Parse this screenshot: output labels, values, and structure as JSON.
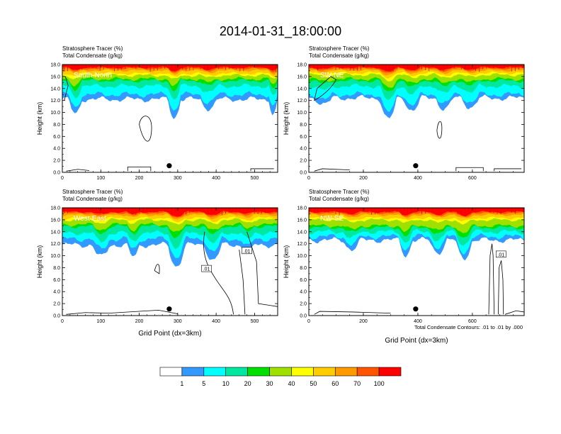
{
  "figure": {
    "title": "2014-01-31_18:00:00",
    "footnote": "Total Condensate Contours: .01 to .01 by .000"
  },
  "palette": {
    "blue": "#3399ff",
    "cyan": "#00ffff",
    "teal": "#00e8a0",
    "green": "#00e000",
    "lime": "#a0e000",
    "yellow": "#ffff00",
    "gold": "#ffcc00",
    "orange": "#ff9900",
    "redorange": "#ff5500",
    "red": "#ff0000"
  },
  "legend": {
    "colors": [
      "#ffffff",
      "#3399ff",
      "#00ffff",
      "#00e8a0",
      "#00e000",
      "#a0e000",
      "#ffff00",
      "#ffcc00",
      "#ff9900",
      "#ff5500",
      "#ff0000"
    ],
    "labels": [
      "1",
      "5",
      "10",
      "20",
      "30",
      "40",
      "50",
      "60",
      "70",
      "100"
    ]
  },
  "chart_data": [
    {
      "type": "heatmap",
      "title_line1": "Stratosphere Tracer   (%)",
      "title_line2": "Total Condensate   (g/kg)",
      "panel_label": "South-North",
      "ylabel": "Height (km)",
      "xlabel": "",
      "xlim": [
        0,
        560
      ],
      "xticks": [
        0,
        100,
        200,
        300,
        400,
        500
      ],
      "ylim": [
        0,
        18
      ],
      "yticks": [
        "0.0",
        "2.0",
        "4.0",
        "6.0",
        "8.0",
        "10.0",
        "12.0",
        "14.0",
        "16.0",
        "18.0"
      ],
      "contour_labels": [],
      "marker": {
        "x": 278,
        "y": 1.1
      },
      "bottom_edge": 12.2,
      "blue_edge": 13.0,
      "cyan_edge": 14.4,
      "green_edge": 15.6,
      "yellow_edge": 16.2,
      "orange_edge": 17.0,
      "red_edge": 17.5
    },
    {
      "type": "heatmap",
      "title_line1": "Stratosphere Tracer   (%)",
      "title_line2": "Total Condensate   (g/kg)",
      "panel_label": "SW-NE",
      "ylabel": "Height (km)",
      "xlabel": "",
      "xlim": [
        0,
        790
      ],
      "xticks": [
        0,
        200,
        400,
        600
      ],
      "ylim": [
        0,
        18
      ],
      "yticks": [
        "0.0",
        "2.0",
        "4.0",
        "6.0",
        "8.0",
        "10.0",
        "12.0",
        "14.0",
        "16.0",
        "18.0"
      ],
      "contour_labels": [],
      "marker": {
        "x": 392,
        "y": 1.1
      },
      "bottom_edge": 12.4,
      "blue_edge": 13.0,
      "cyan_edge": 14.4,
      "green_edge": 15.6,
      "yellow_edge": 16.3,
      "orange_edge": 17.0,
      "red_edge": 17.5
    },
    {
      "type": "heatmap",
      "title_line1": "Stratosphere Tracer   (%)",
      "title_line2": "Total Condensate   (g/kg)",
      "panel_label": "West-East",
      "ylabel": "Height (km)",
      "xlabel": "Grid Point (dx=3km)",
      "xlim": [
        0,
        560
      ],
      "xticks": [
        0,
        100,
        200,
        300,
        400,
        500
      ],
      "ylim": [
        0,
        18
      ],
      "yticks": [
        "0.0",
        "2.0",
        "4.0",
        "6.0",
        "8.0",
        "10.0",
        "12.0",
        "14.0",
        "16.0",
        "18.0"
      ],
      "contour_labels": [
        ".01",
        ".01"
      ],
      "marker": {
        "x": 278,
        "y": 1.1
      },
      "bottom_edge": 11.8,
      "blue_edge": 12.8,
      "cyan_edge": 13.8,
      "green_edge": 15.2,
      "yellow_edge": 16.0,
      "orange_edge": 16.8,
      "red_edge": 17.3
    },
    {
      "type": "heatmap",
      "title_line1": "Stratosphere Tracer   (%)",
      "title_line2": "Total Condensate   (g/kg)",
      "panel_label": "NW-SE",
      "ylabel": "Height (km)",
      "xlabel": "Grid Point (dx=3km)",
      "xlim": [
        0,
        790
      ],
      "xticks": [
        0,
        200,
        400,
        600
      ],
      "ylim": [
        0,
        18
      ],
      "yticks": [
        "0.0",
        "2.0",
        "4.0",
        "6.0",
        "8.0",
        "10.0",
        "12.0",
        "14.0",
        "16.0",
        "18.0"
      ],
      "contour_labels": [
        ".01"
      ],
      "marker": {
        "x": 392,
        "y": 1.1
      },
      "bottom_edge": 12.6,
      "blue_edge": 13.2,
      "cyan_edge": 14.0,
      "green_edge": 15.0,
      "yellow_edge": 16.0,
      "orange_edge": 16.8,
      "red_edge": 17.3
    }
  ]
}
